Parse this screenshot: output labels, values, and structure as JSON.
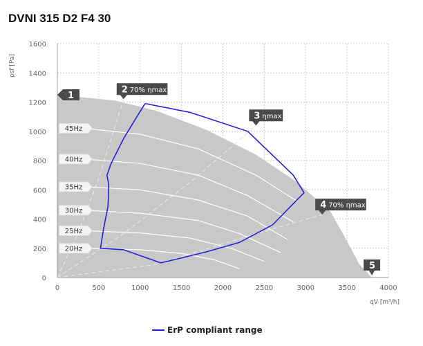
{
  "title": "DVNI 315 D2 F4 30",
  "chart_data": {
    "type": "line",
    "ylabel": "psf [Pa]",
    "xlabel": "qV [m³/h]",
    "xlim": [
      0,
      4000
    ],
    "ylim": [
      0,
      1600
    ],
    "x_ticks": [
      "0",
      "500",
      "1000",
      "1500",
      "2000",
      "2500",
      "3000",
      "3500",
      "4000"
    ],
    "y_ticks": [
      "0",
      "200",
      "400",
      "600",
      "800",
      "1000",
      "1200",
      "1400",
      "1600"
    ],
    "grid": true,
    "fan_curve": [
      [
        0,
        1250
      ],
      [
        700,
        1210
      ],
      [
        1200,
        1140
      ],
      [
        1800,
        1010
      ],
      [
        2400,
        840
      ],
      [
        2900,
        650
      ],
      [
        3300,
        450
      ],
      [
        3450,
        300
      ],
      [
        3650,
        90
      ],
      [
        3800,
        0
      ]
    ],
    "speed_curves": [
      {
        "label": "45Hz",
        "points": [
          [
            330,
            1020
          ],
          [
            1000,
            980
          ],
          [
            1700,
            880
          ],
          [
            2400,
            700
          ],
          [
            2900,
            520
          ]
        ]
      },
      {
        "label": "40Hz",
        "points": [
          [
            330,
            810
          ],
          [
            1000,
            780
          ],
          [
            1700,
            700
          ],
          [
            2300,
            560
          ],
          [
            2850,
            380
          ]
        ]
      },
      {
        "label": "35Hz",
        "points": [
          [
            330,
            620
          ],
          [
            1000,
            600
          ],
          [
            1700,
            530
          ],
          [
            2300,
            420
          ],
          [
            2780,
            260
          ]
        ]
      },
      {
        "label": "30Hz",
        "points": [
          [
            330,
            460
          ],
          [
            1000,
            440
          ],
          [
            1700,
            390
          ],
          [
            2200,
            300
          ],
          [
            2700,
            170
          ]
        ]
      },
      {
        "label": "25Hz",
        "points": [
          [
            330,
            320
          ],
          [
            1000,
            305
          ],
          [
            1600,
            270
          ],
          [
            2100,
            200
          ],
          [
            2500,
            110
          ]
        ]
      },
      {
        "label": "20Hz",
        "points": [
          [
            330,
            200
          ],
          [
            1000,
            190
          ],
          [
            1500,
            165
          ],
          [
            1900,
            120
          ],
          [
            2200,
            60
          ]
        ]
      }
    ],
    "efficiency_lines": [
      {
        "label": "2",
        "text": "70% ηmax",
        "points": [
          [
            0,
            0
          ],
          [
            250,
            300
          ],
          [
            500,
            680
          ],
          [
            800,
            1220
          ]
        ]
      },
      {
        "label": "3",
        "text": "ηmax",
        "points": [
          [
            0,
            0
          ],
          [
            800,
            300
          ],
          [
            1600,
            650
          ],
          [
            2200,
            940
          ],
          [
            2400,
            1040
          ]
        ]
      },
      {
        "label": "4",
        "text": "70% ηmax",
        "points": [
          [
            0,
            0
          ],
          [
            1200,
            90
          ],
          [
            2400,
            300
          ],
          [
            3200,
            430
          ]
        ]
      }
    ],
    "erp_range": {
      "name": "ErP compliant range",
      "points": [
        [
          1060,
          1190
        ],
        [
          950,
          1090
        ],
        [
          800,
          950
        ],
        [
          650,
          780
        ],
        [
          600,
          700
        ],
        [
          620,
          640
        ],
        [
          620,
          560
        ],
        [
          610,
          480
        ],
        [
          560,
          340
        ],
        [
          520,
          200
        ],
        [
          800,
          190
        ],
        [
          1250,
          100
        ],
        [
          1800,
          175
        ],
        [
          2200,
          240
        ],
        [
          2600,
          360
        ],
        [
          2980,
          580
        ],
        [
          2850,
          700
        ],
        [
          2300,
          1000
        ],
        [
          1600,
          1130
        ],
        [
          1060,
          1190
        ]
      ]
    },
    "markers": [
      {
        "label": "1",
        "text": "",
        "x": 0,
        "y": 1250
      },
      {
        "label": "5",
        "text": "",
        "x": 3800,
        "y": 0
      }
    ],
    "legend": [
      "ErP compliant range"
    ],
    "colors": {
      "area": "#c8c8c8",
      "erp": "#2222dd",
      "grid": "#cccccc",
      "flag": "#4a4a4a",
      "white_line": "#ffffff",
      "dashed": "#e6e6e6"
    }
  }
}
